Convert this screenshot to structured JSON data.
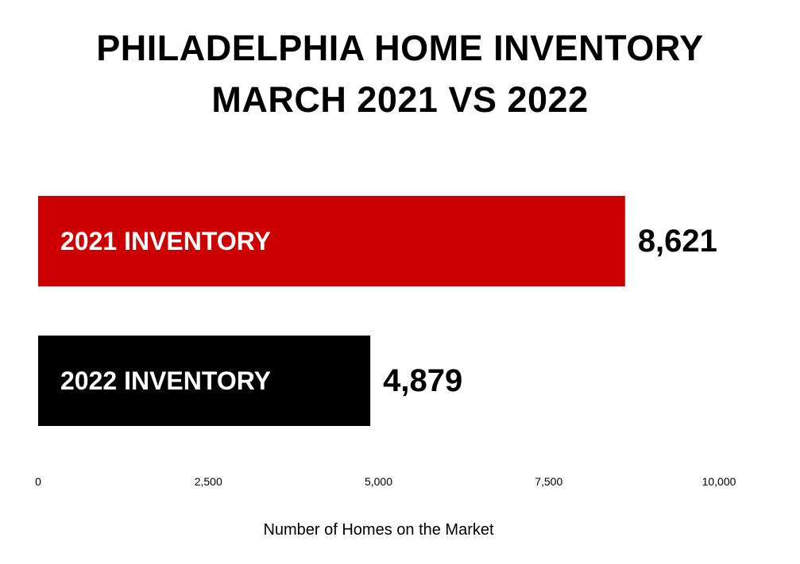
{
  "chart_data": {
    "type": "bar",
    "orientation": "horizontal",
    "title_lines": [
      "PHILADELPHIA HOME INVENTORY",
      "MARCH 2021 VS 2022"
    ],
    "categories": [
      "2021 INVENTORY",
      "2022 INVENTORY"
    ],
    "values": [
      8621,
      4879
    ],
    "value_labels": [
      "8,621",
      "4,879"
    ],
    "colors": [
      "#cc0000",
      "#000000"
    ],
    "xlabel": "Number of Homes on the Market",
    "ylabel": "",
    "xlim": [
      0,
      10000
    ],
    "x_ticks": [
      0,
      2500,
      5000,
      7500,
      10000
    ],
    "x_tick_labels": [
      "0",
      "2,500",
      "5,000",
      "7,500",
      "10,000"
    ],
    "grid": false,
    "legend": "none"
  }
}
